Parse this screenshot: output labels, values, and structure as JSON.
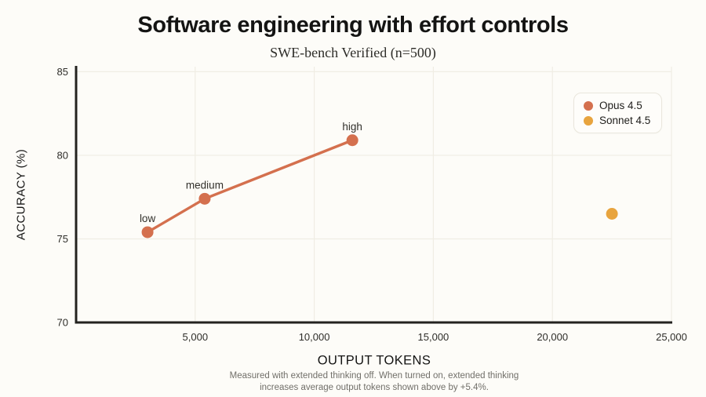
{
  "page": {
    "title": "Software engineering with effort controls",
    "subtitle": "SWE-bench Verified (n=500)",
    "background": "#FDFCF8"
  },
  "chart_data": {
    "type": "line",
    "title": "Software engineering with effort controls",
    "subtitle": "SWE-bench Verified (n=500)",
    "xlabel": "OUTPUT TOKENS",
    "ylabel": "ACCURACY (%)",
    "xlim": [
      0,
      25000
    ],
    "ylim": [
      70,
      85.3
    ],
    "grid": true,
    "legend_position": "top-right",
    "xticks": [
      {
        "value": 5000,
        "label": "5,000"
      },
      {
        "value": 10000,
        "label": "10,000"
      },
      {
        "value": 15000,
        "label": "15,000"
      },
      {
        "value": 20000,
        "label": "20,000"
      },
      {
        "value": 25000,
        "label": "25,000"
      }
    ],
    "yticks": [
      {
        "value": 70,
        "label": "70"
      },
      {
        "value": 75,
        "label": "75"
      },
      {
        "value": 80,
        "label": "80"
      },
      {
        "value": 85,
        "label": "85"
      }
    ],
    "series": [
      {
        "name": "Opus 4.5",
        "color": "#D4704E",
        "line": true,
        "points": [
          {
            "x": 3000,
            "y": 75.4,
            "label": "low"
          },
          {
            "x": 5400,
            "y": 77.4,
            "label": "medium"
          },
          {
            "x": 11600,
            "y": 80.9,
            "label": "high"
          }
        ]
      },
      {
        "name": "Sonnet 4.5",
        "color": "#E8A43E",
        "line": false,
        "points": [
          {
            "x": 22500,
            "y": 76.5,
            "label": ""
          }
        ]
      }
    ],
    "footnote": [
      "Measured with extended thinking off. When turned on, extended thinking",
      "increases average output tokens shown above by +5.4%."
    ]
  },
  "style": {
    "gridline_color": "#F0EDE4",
    "axis_color": "#23221f",
    "plot_background": "#FDFCF8"
  }
}
